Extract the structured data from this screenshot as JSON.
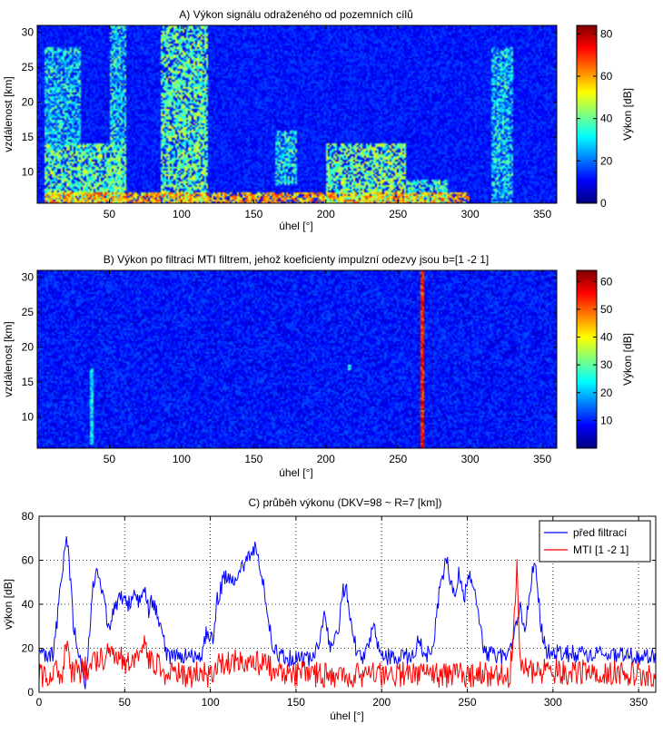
{
  "figure_bg": "#ffffff",
  "chart_data": [
    {
      "type": "heatmap",
      "title": "A) Výkon signálu odraženého od pozemních cílů",
      "xlabel": "úhel [°]",
      "ylabel": "vzdálenost [km]",
      "xlim": [
        0,
        360
      ],
      "ylim": [
        5.5,
        31
      ],
      "xticks": [
        50,
        100,
        150,
        200,
        250,
        300,
        350
      ],
      "yticks": [
        10,
        15,
        20,
        25,
        30
      ],
      "colormap": "jet",
      "colorbar": {
        "label": "Výkon [dB]",
        "range": [
          0,
          84
        ],
        "ticks": [
          0,
          20,
          40,
          60,
          80
        ]
      },
      "background_level_db": 12,
      "clutter_regions": [
        {
          "angle_range": [
            5,
            62
          ],
          "range_km": [
            5.5,
            14
          ],
          "level_db": 40
        },
        {
          "angle_range": [
            5,
            30
          ],
          "range_km": [
            14,
            28
          ],
          "level_db": 30
        },
        {
          "angle_range": [
            50,
            62
          ],
          "range_km": [
            5.5,
            31
          ],
          "level_db": 32
        },
        {
          "angle_range": [
            85,
            118
          ],
          "range_km": [
            5.5,
            31
          ],
          "level_db": 40
        },
        {
          "angle_range": [
            165,
            180
          ],
          "range_km": [
            8,
            16
          ],
          "level_db": 33
        },
        {
          "angle_range": [
            200,
            255
          ],
          "range_km": [
            5.5,
            14
          ],
          "level_db": 42
        },
        {
          "angle_range": [
            255,
            285
          ],
          "range_km": [
            5.5,
            9
          ],
          "level_db": 36
        },
        {
          "angle_range": [
            315,
            330
          ],
          "range_km": [
            5.5,
            28
          ],
          "level_db": 30
        },
        {
          "angle_range": [
            5,
            300
          ],
          "range_km": [
            5.5,
            7
          ],
          "level_db": 58
        }
      ]
    },
    {
      "type": "heatmap",
      "title": "B) Výkon po filtraci MTI filtrem, jehož koeficienty impulzní odezvy jsou b=[1 -2 1]",
      "xlabel": "úhel [°]",
      "ylabel": "vzdálenost [km]",
      "xlim": [
        0,
        360
      ],
      "ylim": [
        5.5,
        31
      ],
      "xticks": [
        50,
        100,
        150,
        200,
        250,
        300,
        350
      ],
      "yticks": [
        10,
        15,
        20,
        25,
        30
      ],
      "colormap": "jet",
      "colorbar": {
        "label": "Výkon [dB]",
        "range": [
          0,
          64
        ],
        "ticks": [
          10,
          20,
          30,
          40,
          50,
          60
        ]
      },
      "background_level_db": 9,
      "targets": [
        {
          "angle": 267,
          "range_km": [
            5.5,
            31
          ],
          "level_db": 55
        },
        {
          "angle": 38,
          "range_km": [
            6,
            17
          ],
          "level_db": 22
        },
        {
          "angle": 216,
          "range_km": [
            17
          ],
          "level_db": 25
        }
      ]
    },
    {
      "type": "line",
      "title": "C) průběh výkonu (DKV=98 ~ R=7 [km])",
      "xlabel": "úhel [°]",
      "ylabel": "výkon [dB]",
      "xlim": [
        0,
        360
      ],
      "ylim": [
        0,
        80
      ],
      "xticks": [
        0,
        50,
        100,
        150,
        200,
        250,
        300,
        350
      ],
      "yticks": [
        0,
        20,
        40,
        60,
        80
      ],
      "grid": true,
      "legend_position": "top-right",
      "series": [
        {
          "name": "před filtrací",
          "color": "#0000ff",
          "anchors": [
            [
              0,
              16
            ],
            [
              8,
              17
            ],
            [
              11,
              35
            ],
            [
              14,
              58
            ],
            [
              16,
              74
            ],
            [
              18,
              55
            ],
            [
              20,
              30
            ],
            [
              23,
              18
            ],
            [
              27,
              4
            ],
            [
              29,
              22
            ],
            [
              31,
              45
            ],
            [
              33,
              55
            ],
            [
              35,
              52
            ],
            [
              38,
              40
            ],
            [
              41,
              30
            ],
            [
              44,
              38
            ],
            [
              47,
              44
            ],
            [
              52,
              40
            ],
            [
              56,
              44
            ],
            [
              59,
              40
            ],
            [
              62,
              48
            ],
            [
              64,
              35
            ],
            [
              66,
              42
            ],
            [
              70,
              32
            ],
            [
              75,
              16
            ],
            [
              95,
              16
            ],
            [
              98,
              28
            ],
            [
              102,
              24
            ],
            [
              104,
              42
            ],
            [
              108,
              52
            ],
            [
              114,
              50
            ],
            [
              118,
              56
            ],
            [
              121,
              60
            ],
            [
              124,
              64
            ],
            [
              127,
              67
            ],
            [
              130,
              52
            ],
            [
              133,
              40
            ],
            [
              136,
              22
            ],
            [
              140,
              16
            ],
            [
              160,
              15
            ],
            [
              164,
              25
            ],
            [
              167,
              35
            ],
            [
              170,
              20
            ],
            [
              175,
              28
            ],
            [
              177,
              45
            ],
            [
              179,
              48
            ],
            [
              182,
              32
            ],
            [
              185,
              20
            ],
            [
              190,
              16
            ],
            [
              196,
              30
            ],
            [
              199,
              16
            ],
            [
              218,
              16
            ],
            [
              222,
              24
            ],
            [
              226,
              16
            ],
            [
              230,
              22
            ],
            [
              233,
              42
            ],
            [
              236,
              55
            ],
            [
              238,
              60
            ],
            [
              240,
              52
            ],
            [
              243,
              45
            ],
            [
              245,
              55
            ],
            [
              248,
              42
            ],
            [
              251,
              55
            ],
            [
              253,
              48
            ],
            [
              255,
              45
            ],
            [
              257,
              32
            ],
            [
              260,
              18
            ],
            [
              272,
              16
            ],
            [
              276,
              22
            ],
            [
              278,
              30
            ],
            [
              281,
              38
            ],
            [
              284,
              30
            ],
            [
              286,
              45
            ],
            [
              288,
              54
            ],
            [
              290,
              58
            ],
            [
              293,
              30
            ],
            [
              296,
              18
            ],
            [
              360,
              16
            ]
          ]
        },
        {
          "name": "MTI [1 -2 1]",
          "color": "#ff0000",
          "anchors": [
            [
              0,
              8
            ],
            [
              14,
              9
            ],
            [
              16,
              22
            ],
            [
              18,
              9
            ],
            [
              22,
              9
            ],
            [
              30,
              12
            ],
            [
              35,
              16
            ],
            [
              45,
              17
            ],
            [
              50,
              14
            ],
            [
              58,
              18
            ],
            [
              62,
              24
            ],
            [
              64,
              14
            ],
            [
              70,
              12
            ],
            [
              75,
              8
            ],
            [
              100,
              8
            ],
            [
              105,
              13
            ],
            [
              115,
              14
            ],
            [
              125,
              14
            ],
            [
              135,
              11
            ],
            [
              140,
              8
            ],
            [
              275,
              8
            ],
            [
              279,
              56
            ],
            [
              281,
              10
            ],
            [
              360,
              8
            ]
          ]
        }
      ]
    }
  ]
}
